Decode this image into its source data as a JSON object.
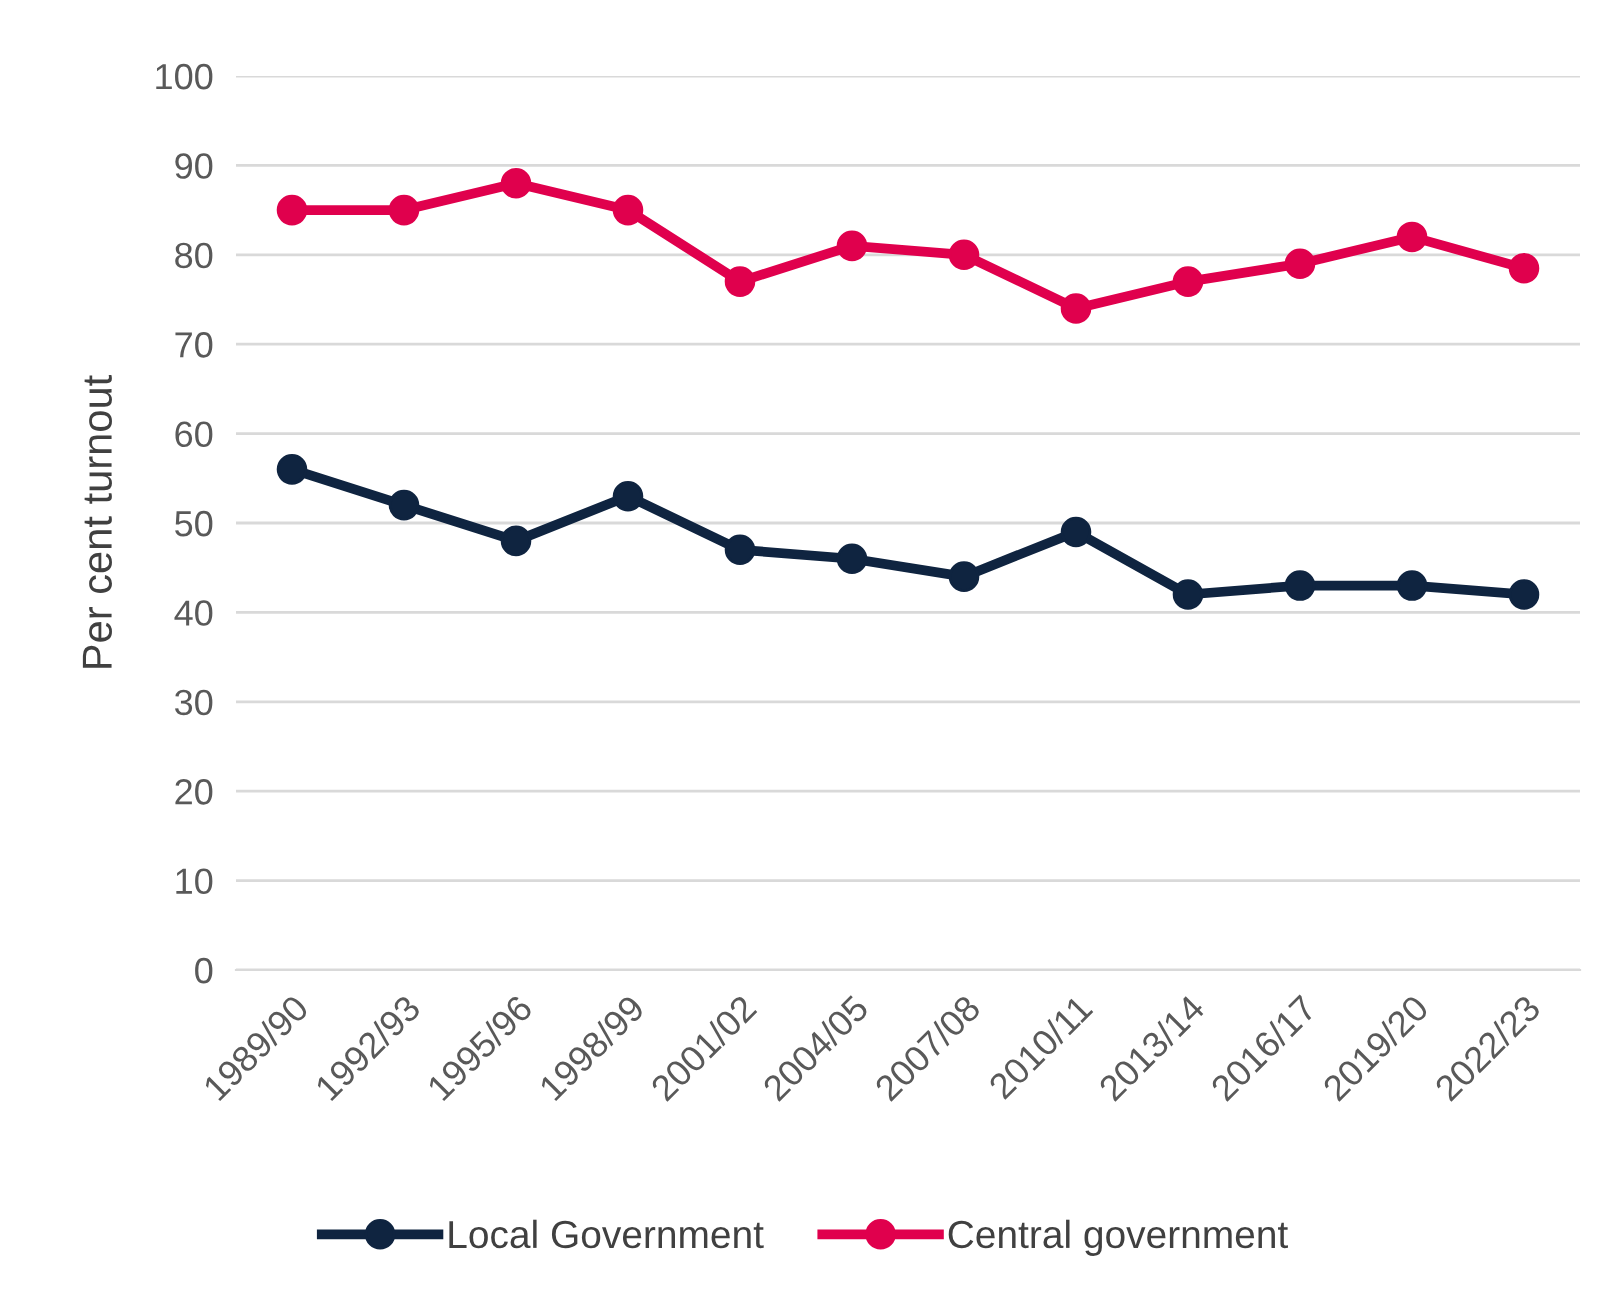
{
  "chart_data": {
    "type": "line",
    "ylabel": "Per cent turnout",
    "categories": [
      "1989/90",
      "1992/93",
      "1995/96",
      "1998/99",
      "2001/02",
      "2004/05",
      "2007/08",
      "2010/11",
      "2013/14",
      "2016/17",
      "2019/20",
      "2022/23"
    ],
    "series": [
      {
        "name": "Local Government",
        "color": "#0f2440",
        "values": [
          56,
          52,
          48,
          53,
          47,
          46,
          44,
          49,
          42,
          43,
          43,
          42
        ]
      },
      {
        "name": "Central government",
        "color": "#e0004d",
        "values": [
          85,
          85,
          88,
          85,
          77,
          81,
          80,
          74,
          77,
          79,
          82,
          78.5
        ]
      }
    ],
    "ylim": [
      0,
      100
    ],
    "yticks": [
      0,
      10,
      20,
      30,
      40,
      50,
      60,
      70,
      80,
      90,
      100
    ],
    "grid": "y",
    "legend": "bottom",
    "marker": "circle",
    "line_style": "solid"
  }
}
